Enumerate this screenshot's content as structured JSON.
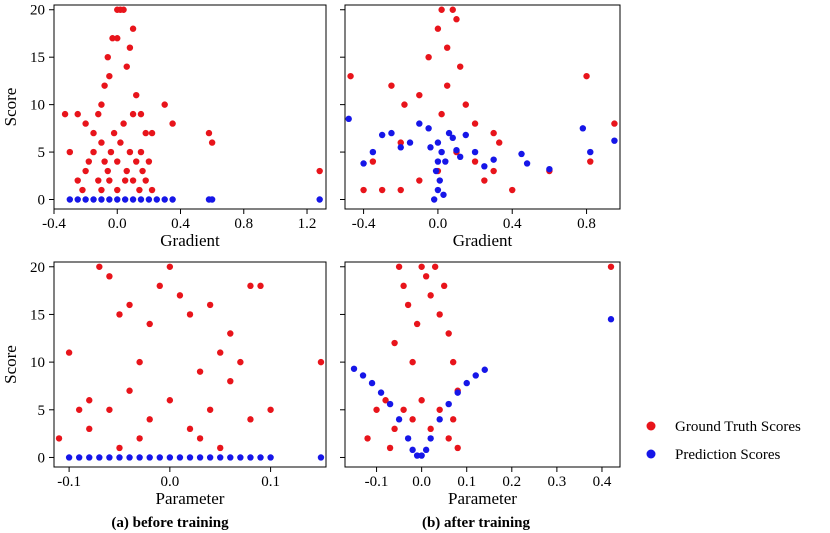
{
  "chart_data": [
    {
      "type": "scatter",
      "panel": "a-top",
      "xlabel": "Gradient",
      "ylabel": "Score",
      "xlim": [
        -0.4,
        1.32
      ],
      "ylim": [
        -1,
        20.5
      ],
      "xticks": [
        -0.4,
        0.0,
        0.4,
        0.8,
        1.2
      ],
      "xtick_labels": [
        "-0.4",
        "0.0",
        "0.4",
        "0.8",
        "1.2"
      ],
      "yticks": [
        0,
        5,
        10,
        15,
        20
      ],
      "ytick_labels": [
        "0",
        "5",
        "10",
        "15",
        "20"
      ],
      "series": [
        {
          "name": "Ground Truth Scores",
          "color": "#e8141b",
          "points": [
            [
              -0.33,
              9
            ],
            [
              -0.3,
              5
            ],
            [
              -0.25,
              9
            ],
            [
              -0.2,
              8
            ],
            [
              -0.15,
              7
            ],
            [
              -0.12,
              9
            ],
            [
              -0.1,
              10
            ],
            [
              -0.08,
              12
            ],
            [
              -0.06,
              15
            ],
            [
              -0.05,
              13
            ],
            [
              -0.03,
              17
            ],
            [
              0.0,
              20
            ],
            [
              0.02,
              20
            ],
            [
              0.04,
              20
            ],
            [
              0.0,
              17
            ],
            [
              0.06,
              14
            ],
            [
              0.08,
              16
            ],
            [
              0.1,
              18
            ],
            [
              0.12,
              11
            ],
            [
              0.15,
              9
            ],
            [
              0.18,
              7
            ],
            [
              0.22,
              7
            ],
            [
              0.3,
              10
            ],
            [
              0.35,
              8
            ],
            [
              0.58,
              7
            ],
            [
              0.6,
              6
            ],
            [
              1.28,
              3
            ],
            [
              -0.25,
              2
            ],
            [
              -0.22,
              1
            ],
            [
              -0.2,
              3
            ],
            [
              -0.18,
              4
            ],
            [
              -0.15,
              5
            ],
            [
              -0.12,
              2
            ],
            [
              -0.1,
              6
            ],
            [
              -0.08,
              4
            ],
            [
              -0.06,
              3
            ],
            [
              -0.04,
              5
            ],
            [
              -0.02,
              7
            ],
            [
              0.0,
              4
            ],
            [
              0.02,
              6
            ],
            [
              0.04,
              8
            ],
            [
              0.06,
              3
            ],
            [
              0.08,
              5
            ],
            [
              0.1,
              2
            ],
            [
              0.12,
              4
            ],
            [
              0.14,
              1
            ],
            [
              0.16,
              3
            ],
            [
              0.18,
              2
            ],
            [
              0.2,
              4
            ],
            [
              0.22,
              1
            ],
            [
              -0.05,
              2
            ],
            [
              0.0,
              1
            ],
            [
              0.05,
              2
            ],
            [
              0.1,
              9
            ],
            [
              -0.1,
              1
            ],
            [
              0.15,
              5
            ]
          ]
        },
        {
          "name": "Prediction Scores",
          "color": "#1616e8",
          "points": [
            [
              -0.3,
              0
            ],
            [
              -0.25,
              0
            ],
            [
              -0.2,
              0
            ],
            [
              -0.15,
              0
            ],
            [
              -0.1,
              0
            ],
            [
              -0.05,
              0
            ],
            [
              0.0,
              0
            ],
            [
              0.05,
              0
            ],
            [
              0.1,
              0
            ],
            [
              0.15,
              0
            ],
            [
              0.2,
              0
            ],
            [
              0.25,
              0
            ],
            [
              0.3,
              0
            ],
            [
              0.35,
              0
            ],
            [
              0.58,
              0
            ],
            [
              0.6,
              0
            ],
            [
              1.28,
              0
            ]
          ]
        }
      ]
    },
    {
      "type": "scatter",
      "panel": "b-top",
      "xlabel": "Gradient",
      "ylabel": "",
      "xlim": [
        -0.5,
        0.98
      ],
      "ylim": [
        -1,
        20.5
      ],
      "xticks": [
        -0.4,
        0.0,
        0.4,
        0.8
      ],
      "xtick_labels": [
        "-0.4",
        "0.0",
        "0.4",
        "0.8"
      ],
      "yticks": [
        0,
        5,
        10,
        15,
        20
      ],
      "ytick_labels": [
        "",
        "",
        "",
        "",
        ""
      ],
      "series": [
        {
          "name": "Ground Truth Scores",
          "color": "#e8141b",
          "points": [
            [
              -0.47,
              13
            ],
            [
              -0.25,
              12
            ],
            [
              -0.18,
              10
            ],
            [
              -0.1,
              11
            ],
            [
              -0.05,
              15
            ],
            [
              0.0,
              18
            ],
            [
              0.02,
              20
            ],
            [
              0.05,
              16
            ],
            [
              0.08,
              20
            ],
            [
              0.1,
              19
            ],
            [
              0.12,
              14
            ],
            [
              0.15,
              10
            ],
            [
              0.2,
              8
            ],
            [
              0.3,
              7
            ],
            [
              0.33,
              6
            ],
            [
              0.8,
              13
            ],
            [
              0.95,
              8
            ],
            [
              0.82,
              4
            ],
            [
              0.6,
              3
            ],
            [
              -0.4,
              1
            ],
            [
              -0.3,
              1
            ],
            [
              -0.2,
              1
            ],
            [
              -0.1,
              2
            ],
            [
              0.0,
              3
            ],
            [
              0.1,
              5
            ],
            [
              0.2,
              4
            ],
            [
              0.25,
              2
            ],
            [
              0.3,
              3
            ],
            [
              0.4,
              1
            ],
            [
              -0.35,
              4
            ],
            [
              -0.2,
              6
            ],
            [
              0.05,
              12
            ],
            [
              0.02,
              9
            ]
          ]
        },
        {
          "name": "Prediction Scores",
          "color": "#1616e8",
          "points": [
            [
              -0.48,
              8.5
            ],
            [
              -0.4,
              3.8
            ],
            [
              -0.35,
              5
            ],
            [
              -0.3,
              6.8
            ],
            [
              -0.25,
              7
            ],
            [
              -0.2,
              5.5
            ],
            [
              -0.15,
              6
            ],
            [
              -0.1,
              8
            ],
            [
              -0.05,
              7.5
            ],
            [
              0.0,
              6
            ],
            [
              0.02,
              5
            ],
            [
              0.04,
              4
            ],
            [
              0.06,
              7
            ],
            [
              0.08,
              6.5
            ],
            [
              0.1,
              5.2
            ],
            [
              0.12,
              4.5
            ],
            [
              0.15,
              6.8
            ],
            [
              0.2,
              5
            ],
            [
              0.25,
              3.5
            ],
            [
              0.3,
              4.2
            ],
            [
              0.45,
              4.8
            ],
            [
              0.48,
              3.8
            ],
            [
              0.6,
              3.2
            ],
            [
              0.78,
              7.5
            ],
            [
              0.82,
              5
            ],
            [
              0.95,
              6.2
            ],
            [
              -0.02,
              0
            ],
            [
              0.0,
              1
            ],
            [
              0.01,
              2
            ],
            [
              -0.01,
              3
            ],
            [
              0.0,
              4
            ],
            [
              0.03,
              0.5
            ],
            [
              -0.04,
              5.5
            ]
          ]
        }
      ]
    },
    {
      "type": "scatter",
      "panel": "a-bottom",
      "xlabel": "Parameter",
      "ylabel": "Score",
      "xlim": [
        -0.115,
        0.155
      ],
      "ylim": [
        -1,
        20.5
      ],
      "xticks": [
        -0.1,
        0.0,
        0.1
      ],
      "xtick_labels": [
        "-0.1",
        "0.0",
        "0.1"
      ],
      "yticks": [
        0,
        5,
        10,
        15,
        20
      ],
      "ytick_labels": [
        "0",
        "5",
        "10",
        "15",
        "20"
      ],
      "series": [
        {
          "name": "Ground Truth Scores",
          "color": "#e8141b",
          "points": [
            [
              -0.11,
              2
            ],
            [
              -0.1,
              11
            ],
            [
              -0.08,
              6
            ],
            [
              -0.07,
              20
            ],
            [
              -0.06,
              19
            ],
            [
              -0.05,
              15
            ],
            [
              -0.04,
              16
            ],
            [
              -0.03,
              10
            ],
            [
              -0.02,
              14
            ],
            [
              -0.01,
              18
            ],
            [
              0.0,
              20
            ],
            [
              0.01,
              17
            ],
            [
              0.02,
              15
            ],
            [
              0.03,
              9
            ],
            [
              0.04,
              16
            ],
            [
              0.05,
              11
            ],
            [
              0.06,
              13
            ],
            [
              0.07,
              10
            ],
            [
              0.08,
              18
            ],
            [
              0.09,
              18
            ],
            [
              0.1,
              5
            ],
            [
              0.15,
              10
            ],
            [
              -0.08,
              3
            ],
            [
              -0.06,
              5
            ],
            [
              -0.04,
              7
            ],
            [
              -0.02,
              4
            ],
            [
              0.0,
              6
            ],
            [
              0.02,
              3
            ],
            [
              0.04,
              5
            ],
            [
              0.06,
              8
            ],
            [
              0.08,
              4
            ],
            [
              -0.05,
              1
            ],
            [
              0.05,
              1
            ],
            [
              -0.09,
              5
            ],
            [
              -0.03,
              2
            ],
            [
              0.03,
              2
            ]
          ]
        },
        {
          "name": "Prediction Scores",
          "color": "#1616e8",
          "points": [
            [
              -0.1,
              0
            ],
            [
              -0.09,
              0
            ],
            [
              -0.08,
              0
            ],
            [
              -0.07,
              0
            ],
            [
              -0.06,
              0
            ],
            [
              -0.05,
              0
            ],
            [
              -0.04,
              0
            ],
            [
              -0.03,
              0
            ],
            [
              -0.02,
              0
            ],
            [
              -0.01,
              0
            ],
            [
              0.0,
              0
            ],
            [
              0.01,
              0
            ],
            [
              0.02,
              0
            ],
            [
              0.03,
              0
            ],
            [
              0.04,
              0
            ],
            [
              0.05,
              0
            ],
            [
              0.06,
              0
            ],
            [
              0.07,
              0
            ],
            [
              0.08,
              0
            ],
            [
              0.09,
              0
            ],
            [
              0.1,
              0
            ],
            [
              0.15,
              0
            ]
          ]
        }
      ]
    },
    {
      "type": "scatter",
      "panel": "b-bottom",
      "xlabel": "Parameter",
      "ylabel": "",
      "xlim": [
        -0.17,
        0.44
      ],
      "ylim": [
        -1,
        20.5
      ],
      "xticks": [
        -0.1,
        0.0,
        0.1,
        0.2,
        0.3,
        0.4
      ],
      "xtick_labels": [
        "-0.1",
        "0.0",
        "0.1",
        "0.2",
        "0.3",
        "0.4"
      ],
      "yticks": [
        0,
        5,
        10,
        15,
        20
      ],
      "ytick_labels": [
        "",
        "",
        "",
        "",
        ""
      ],
      "series": [
        {
          "name": "Ground Truth Scores",
          "color": "#e8141b",
          "points": [
            [
              -0.12,
              2
            ],
            [
              -0.1,
              5
            ],
            [
              -0.08,
              6
            ],
            [
              -0.06,
              12
            ],
            [
              -0.05,
              20
            ],
            [
              -0.04,
              18
            ],
            [
              -0.03,
              16
            ],
            [
              -0.02,
              10
            ],
            [
              -0.01,
              14
            ],
            [
              0.0,
              20
            ],
            [
              0.01,
              19
            ],
            [
              0.02,
              17
            ],
            [
              0.03,
              20
            ],
            [
              0.04,
              15
            ],
            [
              0.05,
              18
            ],
            [
              0.06,
              13
            ],
            [
              0.07,
              10
            ],
            [
              0.08,
              7
            ],
            [
              0.42,
              20
            ],
            [
              -0.06,
              3
            ],
            [
              -0.04,
              5
            ],
            [
              -0.02,
              4
            ],
            [
              0.0,
              6
            ],
            [
              0.02,
              3
            ],
            [
              0.04,
              5
            ],
            [
              0.06,
              2
            ],
            [
              0.08,
              1
            ],
            [
              -0.07,
              1
            ],
            [
              0.07,
              4
            ]
          ]
        },
        {
          "name": "Prediction Scores",
          "color": "#1616e8",
          "points": [
            [
              -0.15,
              9.3
            ],
            [
              -0.13,
              8.6
            ],
            [
              -0.11,
              7.8
            ],
            [
              -0.09,
              6.8
            ],
            [
              -0.07,
              5.6
            ],
            [
              -0.05,
              4
            ],
            [
              -0.03,
              2
            ],
            [
              -0.02,
              0.8
            ],
            [
              -0.01,
              0.2
            ],
            [
              0.0,
              0.2
            ],
            [
              0.01,
              0.8
            ],
            [
              0.02,
              2
            ],
            [
              0.04,
              4
            ],
            [
              0.06,
              5.6
            ],
            [
              0.08,
              6.8
            ],
            [
              0.1,
              7.8
            ],
            [
              0.12,
              8.6
            ],
            [
              0.14,
              9.2
            ],
            [
              0.42,
              14.5
            ]
          ]
        }
      ]
    }
  ],
  "captions": {
    "a": "(a) before training",
    "b": "(b) after training"
  },
  "legend": {
    "placement": "right",
    "items": [
      {
        "label": "Ground Truth Scores",
        "color": "#e8141b"
      },
      {
        "label": "Prediction Scores",
        "color": "#1616e8"
      }
    ]
  }
}
